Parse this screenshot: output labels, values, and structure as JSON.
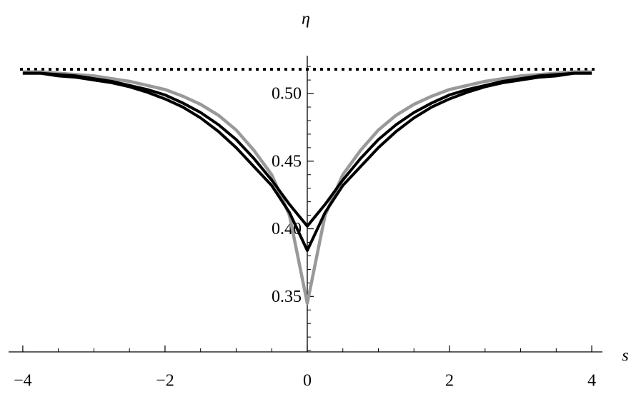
{
  "chart_data": {
    "type": "line",
    "x_label": "s",
    "y_label": "η",
    "x": [
      -4,
      -3.75,
      -3.5,
      -3.25,
      -3,
      -2.75,
      -2.5,
      -2.25,
      -2,
      -1.75,
      -1.5,
      -1.25,
      -1,
      -0.75,
      -0.5,
      -0.25,
      0,
      0.25,
      0.5,
      0.75,
      1,
      1.25,
      1.5,
      1.75,
      2,
      2.25,
      2.5,
      2.75,
      3,
      3.25,
      3.5,
      3.75,
      4
    ],
    "series": [
      {
        "color": "#999999",
        "values": [
          0.516,
          0.516,
          0.515,
          0.514,
          0.513,
          0.511,
          0.509,
          0.506,
          0.503,
          0.498,
          0.492,
          0.484,
          0.473,
          0.458,
          0.44,
          0.41,
          0.345,
          0.41,
          0.44,
          0.458,
          0.473,
          0.484,
          0.492,
          0.498,
          0.503,
          0.506,
          0.509,
          0.511,
          0.513,
          0.514,
          0.515,
          0.516,
          0.516
        ]
      },
      {
        "color": "#000000",
        "values": [
          0.515,
          0.515,
          0.514,
          0.513,
          0.511,
          0.509,
          0.506,
          0.503,
          0.499,
          0.493,
          0.486,
          0.477,
          0.466,
          0.452,
          0.436,
          0.418,
          0.402,
          0.418,
          0.436,
          0.452,
          0.466,
          0.477,
          0.486,
          0.493,
          0.499,
          0.503,
          0.506,
          0.509,
          0.511,
          0.513,
          0.514,
          0.515,
          0.515
        ]
      },
      {
        "color": "#000000",
        "values": [
          0.515,
          0.515,
          0.513,
          0.512,
          0.51,
          0.508,
          0.505,
          0.501,
          0.496,
          0.49,
          0.482,
          0.472,
          0.46,
          0.446,
          0.432,
          0.412,
          0.384,
          0.412,
          0.432,
          0.446,
          0.46,
          0.472,
          0.482,
          0.49,
          0.496,
          0.501,
          0.505,
          0.508,
          0.51,
          0.512,
          0.513,
          0.515,
          0.515
        ]
      }
    ],
    "dotted_line": 0.518,
    "xlim": [
      -4.2,
      4.15
    ],
    "ylim": [
      0.309,
      0.528
    ],
    "xticks": [
      {
        "value": -4,
        "label": "−4"
      },
      {
        "value": -2,
        "label": "−2"
      },
      0,
      2,
      4
    ],
    "xminorticks": [
      -3.5,
      -3,
      -2.5,
      -1.5,
      -1,
      -0.5,
      0.5,
      1,
      1.5,
      2.5,
      3,
      3.5
    ],
    "yticks": [
      0.35,
      {
        "value": 0.4,
        "label": "0.40"
      },
      0.45,
      {
        "value": 0.5,
        "label": "0.50"
      }
    ],
    "yminorticks": [
      0.31,
      0.32,
      0.33,
      0.34,
      0.36,
      0.37,
      0.38,
      0.39,
      0.41,
      0.42,
      0.43,
      0.44,
      0.46,
      0.47,
      0.48,
      0.49,
      0.51,
      0.52
    ]
  }
}
